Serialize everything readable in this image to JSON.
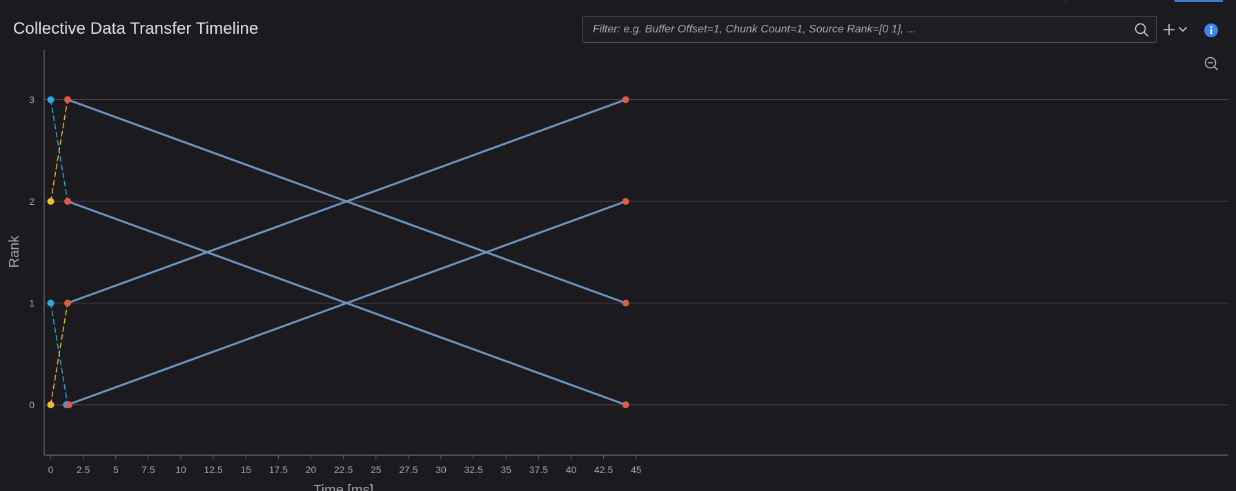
{
  "header": {
    "title": "Collective Data Transfer Timeline"
  },
  "filter": {
    "placeholder": "Filter: e.g. Buffer Offset=1, Chunk Count=1, Source Rank=[0 1], ..."
  },
  "icons": {
    "search": "search-icon",
    "add": "plus-icon",
    "dropdown": "chevron-down-icon",
    "info": "info-icon",
    "zoom_out": "zoom-out-icon"
  },
  "colors": {
    "background": "#1b1b1f",
    "grid": "#4a4a50",
    "axis": "#6a6a70",
    "tick_text": "#a6a6ab",
    "transfer": "#6f95bd",
    "start_point": "#2aa9e0",
    "end_point": "#e05a48",
    "orange_point": "#f5b82e",
    "info_accent": "#3d84f0"
  },
  "chart_data": {
    "type": "line",
    "xlabel": "Time [ms]",
    "ylabel": "Rank",
    "xlim": [
      -0.5,
      45.3
    ],
    "ylim": [
      -0.5,
      3.5
    ],
    "x_ticks": [
      0,
      2.5,
      5,
      7.5,
      10,
      12.5,
      15,
      17.5,
      20,
      22.5,
      25,
      27.5,
      30,
      32.5,
      35,
      37.5,
      40,
      42.5,
      45
    ],
    "x_tick_labels": [
      "0",
      "2.5",
      "5",
      "7.5",
      "10",
      "12.5",
      "15",
      "17.5",
      "20",
      "22.5",
      "25",
      "27.5",
      "30",
      "32.5",
      "35",
      "37.5",
      "40",
      "42.5",
      "45"
    ],
    "y_ticks": [
      0,
      1,
      2,
      3
    ],
    "y_tick_labels": [
      "0",
      "1",
      "2",
      "3"
    ],
    "grid": "horizontal",
    "series": [
      {
        "style": "dashed",
        "color": "#2aa9e0",
        "segments": [
          {
            "from": [
              0,
              3
            ],
            "to": [
              1.3,
              2
            ]
          },
          {
            "from": [
              0,
              1
            ],
            "to": [
              1.3,
              0
            ]
          }
        ]
      },
      {
        "style": "dashed",
        "color": "#f5b82e",
        "segments": [
          {
            "from": [
              0,
              2
            ],
            "to": [
              1.3,
              3
            ]
          },
          {
            "from": [
              0,
              0
            ],
            "to": [
              1.3,
              1
            ]
          }
        ]
      },
      {
        "style": "solid",
        "color": "#6f95bd",
        "segments": [
          {
            "from": [
              1.3,
              3
            ],
            "to": [
              44.2,
              1
            ]
          },
          {
            "from": [
              1.3,
              2
            ],
            "to": [
              44.2,
              0
            ]
          },
          {
            "from": [
              1.3,
              1
            ],
            "to": [
              44.2,
              3
            ]
          },
          {
            "from": [
              1.3,
              0
            ],
            "to": [
              44.2,
              2
            ]
          }
        ]
      }
    ],
    "points": [
      {
        "x": 0,
        "y": 3,
        "color": "#2aa9e0"
      },
      {
        "x": 0,
        "y": 2,
        "color": "#f5b82e"
      },
      {
        "x": 0,
        "y": 1,
        "color": "#2aa9e0"
      },
      {
        "x": 0,
        "y": 0,
        "color": "#f5b82e"
      },
      {
        "x": 1.2,
        "y": 0,
        "color": "#2aa9e0"
      },
      {
        "x": 1.3,
        "y": 3,
        "color": "#e05a48"
      },
      {
        "x": 1.3,
        "y": 2,
        "color": "#e05a48"
      },
      {
        "x": 1.3,
        "y": 1,
        "color": "#e05a48"
      },
      {
        "x": 1.4,
        "y": 0,
        "color": "#e05a48"
      },
      {
        "x": 44.2,
        "y": 3,
        "color": "#e05a48"
      },
      {
        "x": 44.2,
        "y": 2,
        "color": "#e05a48"
      },
      {
        "x": 44.2,
        "y": 1,
        "color": "#e05a48"
      },
      {
        "x": 44.2,
        "y": 0,
        "color": "#e05a48"
      }
    ]
  }
}
